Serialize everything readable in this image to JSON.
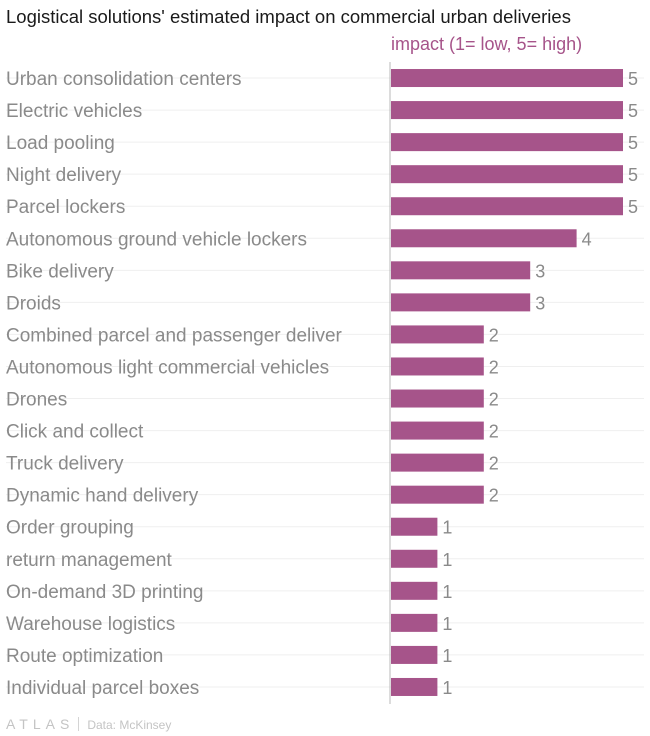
{
  "chart_data": {
    "type": "bar",
    "orientation": "horizontal",
    "title": "Logistical solutions' estimated impact on commercial urban deliveries",
    "series": [
      {
        "name": "impact (1= low, 5= high)",
        "color": "#a6548a",
        "values": [
          5,
          5,
          5,
          5,
          5,
          4,
          3,
          3,
          2,
          2,
          2,
          2,
          2,
          2,
          1,
          1,
          1,
          1,
          1,
          1
        ]
      }
    ],
    "categories": [
      "Urban consolidation centers",
      "Electric vehicles",
      "Load pooling",
      "Night delivery",
      "Parcel lockers",
      "Autonomous ground vehicle lockers",
      "Bike delivery",
      "Droids",
      "Combined parcel and passenger deliver",
      "Autonomous light commercial vehicles",
      "Drones",
      "Click and collect",
      "Truck delivery",
      "Dynamic hand delivery",
      "Order grouping",
      "return management",
      "On-demand 3D printing",
      "Warehouse logistics",
      "Route optimization",
      "Individual parcel boxes"
    ],
    "xlim": [
      0,
      5
    ],
    "grid": true,
    "legend": "top"
  },
  "footer": {
    "logo": "ATLAS",
    "source": "Data: McKinsey"
  }
}
